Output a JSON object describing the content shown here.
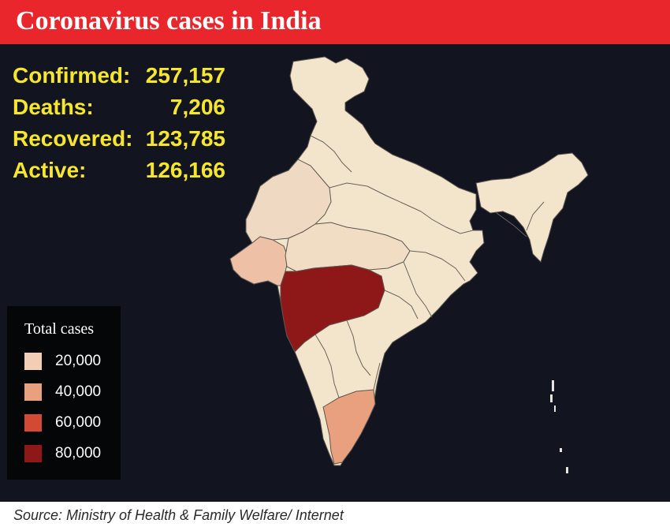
{
  "header": {
    "title": "Coronavirus cases in India"
  },
  "stats": [
    {
      "label": "Confirmed:",
      "value": "257,157"
    },
    {
      "label": "Deaths:",
      "value": "7,206"
    },
    {
      "label": "Recovered:",
      "value": "123,785"
    },
    {
      "label": "Active:",
      "value": "126,166"
    }
  ],
  "legend": {
    "title": "Total cases",
    "items": [
      {
        "label": "20,000",
        "color": "#f3cdb5"
      },
      {
        "label": "40,000",
        "color": "#e9a07e"
      },
      {
        "label": "60,000",
        "color": "#d24a33"
      },
      {
        "label": "80,000",
        "color": "#8e1818"
      }
    ]
  },
  "map": {
    "background": "#12151f",
    "base_color": "#f3e4cc",
    "border_color": "#5a5550",
    "highlighted_regions": [
      {
        "region": "Maharashtra",
        "color": "#8e1818"
      },
      {
        "region": "Tamil Nadu",
        "color": "#e9a07e"
      },
      {
        "region": "Gujarat",
        "color": "#eec1a6"
      },
      {
        "region": "Rajasthan",
        "color": "#f0d9c2"
      },
      {
        "region": "Madhya Pradesh",
        "color": "#f1dcc4"
      }
    ]
  },
  "footer": {
    "source": "Source: Ministry of Health & Family Welfare/ Internet"
  },
  "colors": {
    "header_bg": "#e8262c",
    "stats_text": "#f6e72e"
  }
}
